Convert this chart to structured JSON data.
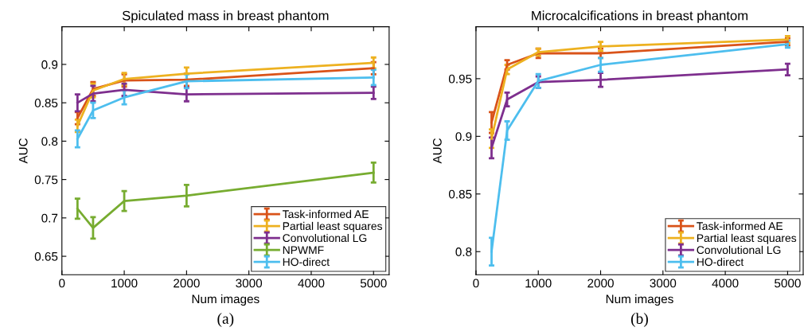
{
  "chart_data": [
    {
      "type": "line",
      "title": "Spiculated mass in breast phantom",
      "xlabel": "Num images",
      "ylabel": "AUC",
      "annotations": [
        "(a)"
      ],
      "x": [
        250,
        500,
        1000,
        2000,
        5000
      ],
      "xlim": [
        0,
        5250
      ],
      "xticks": [
        0,
        1000,
        2000,
        3000,
        4000,
        5000
      ],
      "ylim": [
        0.626,
        0.949
      ],
      "yticks": [
        0.65,
        0.7,
        0.75,
        0.8,
        0.85,
        0.9
      ],
      "grid": false,
      "legend": "bottom right",
      "marker": "none",
      "line_style": "solid",
      "series": [
        {
          "name": "Task-informed AE",
          "color": "#d95319",
          "values": [
            0.83,
            0.868,
            0.879,
            0.88,
            0.895
          ],
          "errors": [
            0.008,
            0.009,
            0.008,
            0.008,
            0.008
          ]
        },
        {
          "name": "Partial least squares",
          "color": "#edb120",
          "values": [
            0.82,
            0.866,
            0.881,
            0.888,
            0.902
          ],
          "errors": [
            0.008,
            0.009,
            0.008,
            0.008,
            0.007
          ]
        },
        {
          "name": "Convolutional LG",
          "color": "#7e2f8e",
          "values": [
            0.85,
            0.862,
            0.867,
            0.861,
            0.863
          ],
          "errors": [
            0.011,
            0.01,
            0.008,
            0.009,
            0.008
          ]
        },
        {
          "name": "NPWMF",
          "color": "#77ac30",
          "values": [
            0.712,
            0.687,
            0.722,
            0.729,
            0.759
          ],
          "errors": [
            0.013,
            0.014,
            0.013,
            0.014,
            0.013
          ]
        },
        {
          "name": "HO-direct",
          "color": "#4dbeee",
          "values": [
            0.803,
            0.84,
            0.857,
            0.878,
            0.883
          ],
          "errors": [
            0.011,
            0.01,
            0.009,
            0.009,
            0.01
          ]
        }
      ]
    },
    {
      "type": "line",
      "title": "Microcalcifications in breast phantom",
      "xlabel": "Num images",
      "ylabel": "AUC",
      "annotations": [
        "(b)"
      ],
      "x": [
        250,
        500,
        1000,
        2000,
        5000
      ],
      "xlim": [
        0,
        5250
      ],
      "xticks": [
        0,
        1000,
        2000,
        3000,
        4000,
        5000
      ],
      "ylim": [
        0.78,
        0.995
      ],
      "yticks": [
        0.8,
        0.85,
        0.9,
        0.95
      ],
      "grid": false,
      "legend": "bottom right",
      "marker": "none",
      "line_style": "solid",
      "series": [
        {
          "name": "Task-informed AE",
          "color": "#d95319",
          "values": [
            0.912,
            0.962,
            0.972,
            0.972,
            0.982
          ],
          "errors": [
            0.009,
            0.004,
            0.004,
            0.004,
            0.003
          ]
        },
        {
          "name": "Partial least squares",
          "color": "#edb120",
          "values": [
            0.898,
            0.958,
            0.973,
            0.978,
            0.984
          ],
          "errors": [
            0.008,
            0.004,
            0.003,
            0.004,
            0.003
          ]
        },
        {
          "name": "Convolutional LG",
          "color": "#7e2f8e",
          "values": [
            0.89,
            0.932,
            0.947,
            0.949,
            0.958
          ],
          "errors": [
            0.009,
            0.006,
            0.005,
            0.006,
            0.005
          ]
        },
        {
          "name": "HO-direct",
          "color": "#4dbeee",
          "values": [
            0.8,
            0.905,
            0.948,
            0.962,
            0.98
          ],
          "errors": [
            0.012,
            0.008,
            0.006,
            0.006,
            0.003
          ]
        }
      ]
    }
  ]
}
